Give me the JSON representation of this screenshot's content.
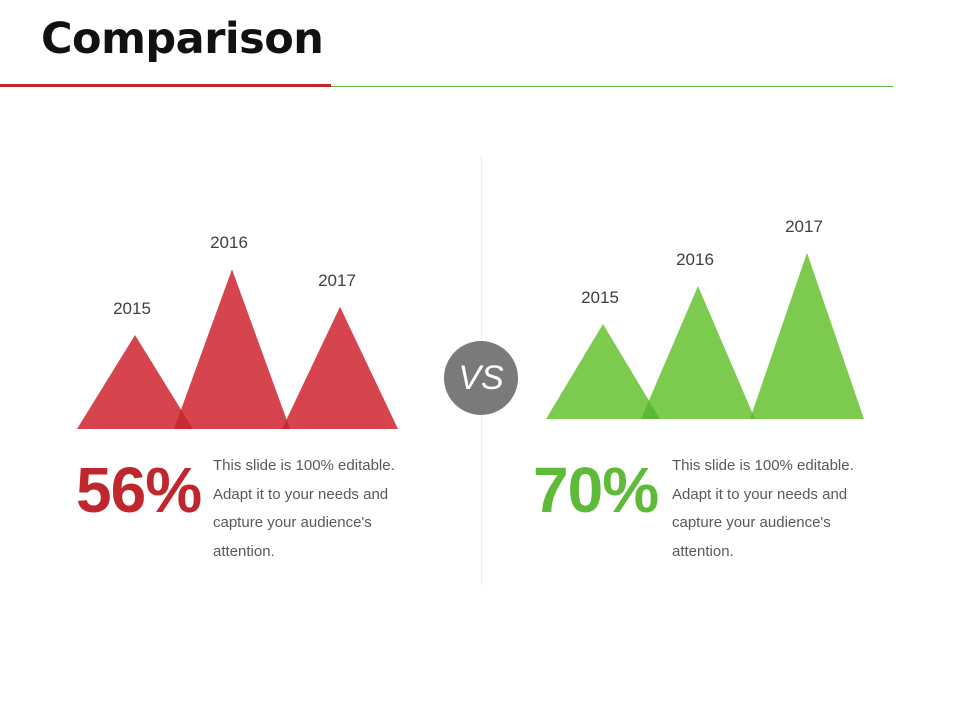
{
  "slide": {
    "title": "Comparison",
    "vs_label": "VS"
  },
  "chart_data": [
    {
      "type": "area",
      "categories": [
        "2015",
        "2016",
        "2017"
      ],
      "values": [
        1.0,
        1.7,
        1.3
      ],
      "color": "#d6454d",
      "overlap_color": "#c72a33",
      "percent_label": "56%",
      "percent_color": "#c0272d",
      "description": "This slide is 100% editable. Adapt it to your needs and capture your audience's attention."
    },
    {
      "type": "area",
      "categories": [
        "2015",
        "2016",
        "2017"
      ],
      "values": [
        1.0,
        1.4,
        1.75
      ],
      "color": "#7ccb4f",
      "overlap_color": "#5cb936",
      "percent_label": "70%",
      "percent_color": "#5fba3a",
      "description": "This slide is 100% editable. Adapt it to your needs and capture your audience's attention."
    }
  ]
}
